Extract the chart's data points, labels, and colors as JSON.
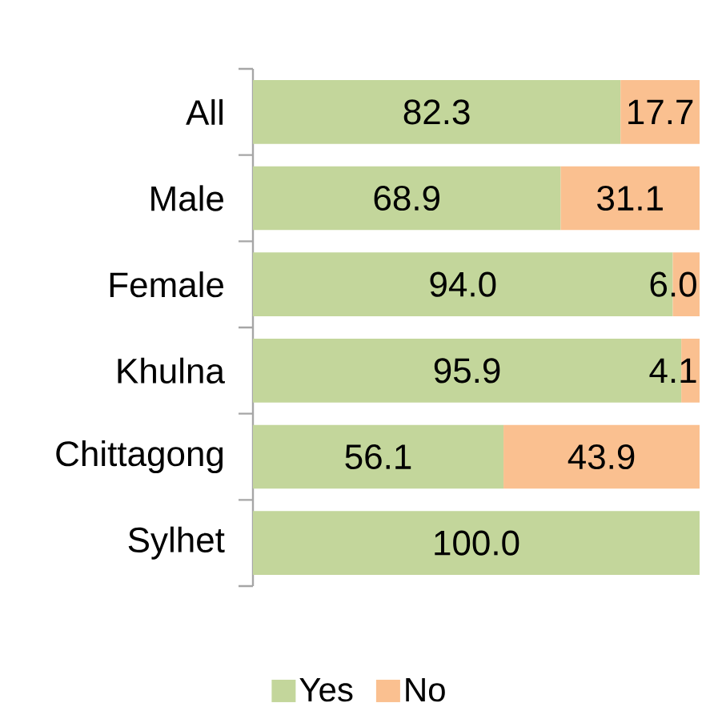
{
  "chart_data": {
    "type": "bar",
    "orientation": "horizontal",
    "stacked": true,
    "legend": "bottom",
    "categories": [
      "All",
      "Male",
      "Female",
      "Khulna",
      "Chittagong",
      "Sylhet"
    ],
    "series": [
      {
        "name": "Yes",
        "color": "#c3d69b",
        "values": [
          82.3,
          68.9,
          94.0,
          95.9,
          56.1,
          100.0
        ],
        "value_labels": [
          "82.3",
          "68.9",
          "94.0",
          "95.9",
          "56.1",
          "100.0"
        ]
      },
      {
        "name": "No",
        "color": "#fac090",
        "values": [
          17.7,
          31.1,
          6.0,
          4.1,
          43.9,
          null
        ],
        "value_labels": [
          "17.7",
          "31.1",
          "6.0",
          "4.1",
          "43.9",
          null
        ]
      }
    ]
  }
}
